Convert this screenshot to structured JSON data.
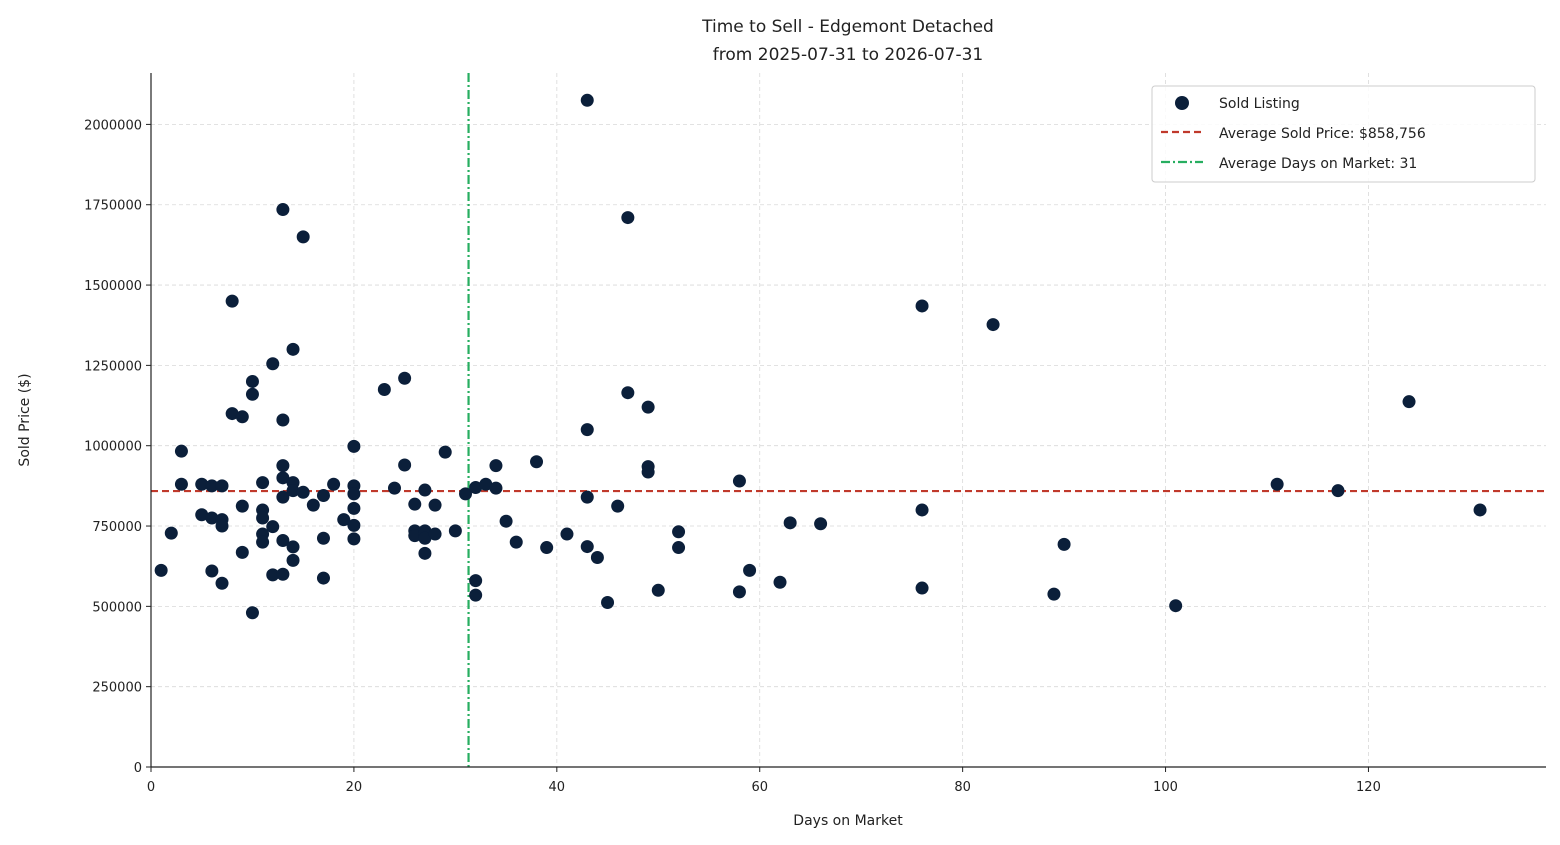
{
  "chart_data": {
    "type": "scatter",
    "title": "Time to Sell - Edgemont Detached",
    "subtitle": "from 2025-07-31 to 2026-07-31",
    "xlabel": "Days on Market",
    "ylabel": "Sold Price ($)",
    "xlim": [
      0,
      137.5
    ],
    "ylim": [
      0,
      2160000
    ],
    "x_ticks": [
      0,
      20,
      40,
      60,
      80,
      100,
      120
    ],
    "y_ticks": [
      0,
      250000,
      500000,
      750000,
      1000000,
      1250000,
      1500000,
      1750000,
      2000000
    ],
    "grid": true,
    "legend_position": "top-right",
    "colors": {
      "points": "#0b1f3a",
      "avg_price_line": "#c0392b",
      "avg_days_line": "#27ae60"
    },
    "series": [
      {
        "name": "Sold Listing",
        "points": [
          [
            1,
            612000
          ],
          [
            2,
            728000
          ],
          [
            3,
            983000
          ],
          [
            3,
            880000
          ],
          [
            5,
            880000
          ],
          [
            5,
            785000
          ],
          [
            6,
            875000
          ],
          [
            6,
            775000
          ],
          [
            6,
            610000
          ],
          [
            7,
            875000
          ],
          [
            7,
            770000
          ],
          [
            7,
            750000
          ],
          [
            7,
            572000
          ],
          [
            8,
            1450000
          ],
          [
            8,
            1100000
          ],
          [
            9,
            1090000
          ],
          [
            9,
            812000
          ],
          [
            9,
            668000
          ],
          [
            10,
            1200000
          ],
          [
            10,
            1160000
          ],
          [
            10,
            480000
          ],
          [
            11,
            885000
          ],
          [
            11,
            800000
          ],
          [
            11,
            775000
          ],
          [
            11,
            725000
          ],
          [
            11,
            700000
          ],
          [
            12,
            1255000
          ],
          [
            12,
            748000
          ],
          [
            12,
            598000
          ],
          [
            13,
            1735000
          ],
          [
            13,
            1080000
          ],
          [
            13,
            938000
          ],
          [
            13,
            900000
          ],
          [
            13,
            840000
          ],
          [
            13,
            705000
          ],
          [
            13,
            600000
          ],
          [
            14,
            1300000
          ],
          [
            14,
            885000
          ],
          [
            14,
            860000
          ],
          [
            14,
            685000
          ],
          [
            14,
            643000
          ],
          [
            15,
            1650000
          ],
          [
            15,
            855000
          ],
          [
            16,
            815000
          ],
          [
            17,
            845000
          ],
          [
            17,
            712000
          ],
          [
            17,
            588000
          ],
          [
            18,
            880000
          ],
          [
            19,
            770000
          ],
          [
            20,
            998000
          ],
          [
            20,
            875000
          ],
          [
            20,
            850000
          ],
          [
            20,
            805000
          ],
          [
            20,
            752000
          ],
          [
            20,
            710000
          ],
          [
            23,
            1175000
          ],
          [
            24,
            868000
          ],
          [
            25,
            1210000
          ],
          [
            25,
            940000
          ],
          [
            26,
            818000
          ],
          [
            26,
            735000
          ],
          [
            26,
            720000
          ],
          [
            27,
            862000
          ],
          [
            27,
            735000
          ],
          [
            27,
            725000
          ],
          [
            27,
            712000
          ],
          [
            27,
            665000
          ],
          [
            28,
            815000
          ],
          [
            28,
            725000
          ],
          [
            29,
            980000
          ],
          [
            30,
            735000
          ],
          [
            31,
            850000
          ],
          [
            32,
            870000
          ],
          [
            32,
            580000
          ],
          [
            32,
            535000
          ],
          [
            33,
            880000
          ],
          [
            34,
            938000
          ],
          [
            34,
            868000
          ],
          [
            35,
            765000
          ],
          [
            36,
            700000
          ],
          [
            38,
            950000
          ],
          [
            39,
            683000
          ],
          [
            41,
            725000
          ],
          [
            43,
            2075000
          ],
          [
            43,
            1050000
          ],
          [
            43,
            840000
          ],
          [
            43,
            686000
          ],
          [
            44,
            652000
          ],
          [
            45,
            512000
          ],
          [
            46,
            812000
          ],
          [
            47,
            1710000
          ],
          [
            47,
            1165000
          ],
          [
            49,
            1120000
          ],
          [
            49,
            935000
          ],
          [
            49,
            918000
          ],
          [
            50,
            550000
          ],
          [
            52,
            732000
          ],
          [
            52,
            683000
          ],
          [
            58,
            890000
          ],
          [
            58,
            545000
          ],
          [
            59,
            612000
          ],
          [
            62,
            575000
          ],
          [
            63,
            760000
          ],
          [
            66,
            757000
          ],
          [
            76,
            1435000
          ],
          [
            76,
            800000
          ],
          [
            76,
            557000
          ],
          [
            83,
            1377000
          ],
          [
            89,
            538000
          ],
          [
            90,
            693000
          ],
          [
            101,
            502000
          ],
          [
            111,
            880000
          ],
          [
            117,
            860000
          ],
          [
            124,
            1137000
          ],
          [
            131,
            800000
          ]
        ]
      }
    ],
    "avg_price": {
      "name": "Average Sold Price: $858,756",
      "value": 858756
    },
    "avg_days": {
      "name": "Average Days on Market: 31",
      "value": 31.3
    }
  }
}
